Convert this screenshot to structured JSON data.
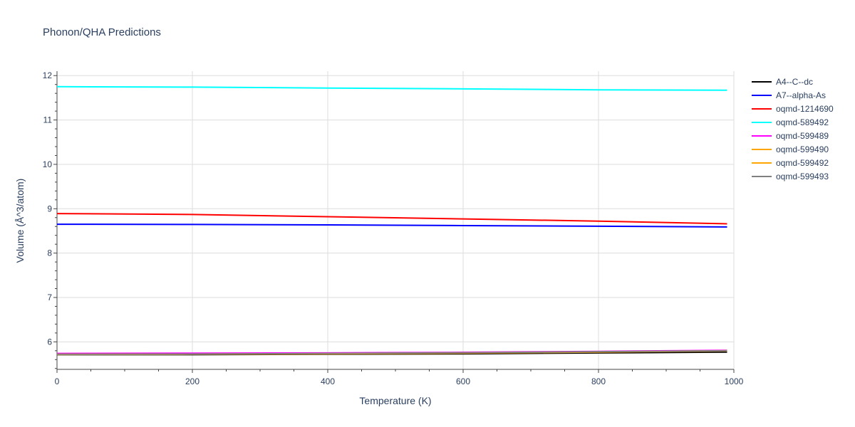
{
  "chart_data": {
    "type": "line",
    "title": "Phonon/QHA Predictions",
    "xlabel": "Temperature (K)",
    "ylabel": "Volume (Å^3/atom)",
    "xlim": [
      0,
      1000
    ],
    "ylim": [
      5.38,
      12.1
    ],
    "x_ticks": [
      0,
      200,
      400,
      600,
      800,
      1000
    ],
    "y_ticks": [
      6,
      7,
      8,
      9,
      10,
      11,
      12
    ],
    "grid": true,
    "legend_position": "right",
    "series": [
      {
        "name": "A4--C--dc",
        "color": "#000000",
        "x": [
          0,
          200,
          400,
          600,
          800,
          990
        ],
        "y": [
          5.71,
          5.71,
          5.72,
          5.73,
          5.75,
          5.77
        ]
      },
      {
        "name": "A7--alpha-As",
        "color": "#0000ff",
        "x": [
          0,
          200,
          400,
          600,
          800,
          990
        ],
        "y": [
          8.65,
          8.645,
          8.635,
          8.62,
          8.605,
          8.59
        ]
      },
      {
        "name": "oqmd-1214690",
        "color": "#ff0000",
        "x": [
          0,
          200,
          400,
          600,
          800,
          990
        ],
        "y": [
          8.89,
          8.87,
          8.82,
          8.77,
          8.72,
          8.66
        ]
      },
      {
        "name": "oqmd-589492",
        "color": "#00ffff",
        "x": [
          0,
          200,
          400,
          600,
          800,
          990
        ],
        "y": [
          11.75,
          11.74,
          11.72,
          11.7,
          11.68,
          11.67
        ]
      },
      {
        "name": "oqmd-599489",
        "color": "#ff00ff",
        "x": [
          0,
          200,
          400,
          600,
          800,
          990
        ],
        "y": [
          5.74,
          5.745,
          5.75,
          5.765,
          5.785,
          5.81
        ]
      },
      {
        "name": "oqmd-599490",
        "color": "#ffa500",
        "x": [
          0,
          200,
          400,
          600,
          800,
          990
        ],
        "y": [
          5.72,
          5.725,
          5.735,
          5.75,
          5.775,
          5.8
        ]
      },
      {
        "name": "oqmd-599492",
        "color": "#ffa500",
        "x": [
          0,
          200,
          400,
          600,
          800,
          990
        ],
        "y": [
          5.715,
          5.72,
          5.73,
          5.745,
          5.77,
          5.795
        ]
      },
      {
        "name": "oqmd-599493",
        "color": "#808080",
        "x": [
          0,
          200,
          400,
          600,
          800,
          990
        ],
        "y": [
          5.72,
          5.725,
          5.74,
          5.755,
          5.78,
          5.8
        ]
      }
    ]
  }
}
